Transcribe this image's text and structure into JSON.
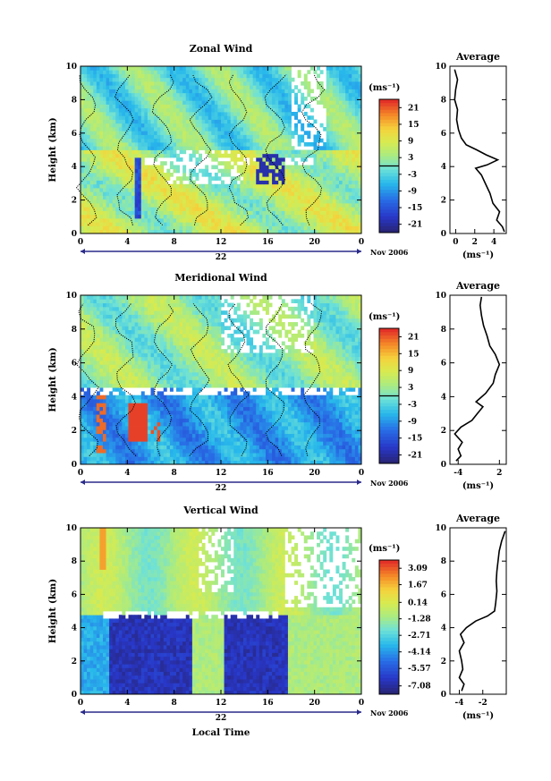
{
  "date_label": "Nov 2006",
  "unit_label": "(ms⁻¹)",
  "day_label": "22",
  "xlabel_bottom": "Local Time",
  "chart_data": [
    {
      "type": "heatmap",
      "name": "zonal",
      "title": "Zonal Wind",
      "xlabel": "",
      "ylabel": "Height (km)",
      "x_ticks": [
        "0",
        "4",
        "8",
        "12",
        "16",
        "20",
        "0"
      ],
      "x_range": [
        0,
        24
      ],
      "y_ticks": [
        "0",
        "2",
        "4",
        "6",
        "8",
        "10"
      ],
      "ylim": [
        0,
        10
      ],
      "colorbar": {
        "ticks": [
          "21",
          "15",
          "9",
          "3",
          "-3",
          "-9",
          "-15",
          "-21"
        ],
        "range": [
          -24,
          24
        ],
        "zero_line": true
      },
      "grid": false
    },
    {
      "type": "line",
      "name": "zonal-average",
      "title": "Average",
      "xlabel": "(ms⁻¹)",
      "x_ticks": [
        "0",
        "2",
        "4"
      ],
      "xlim": [
        -0.6,
        5.3
      ],
      "y_ticks": [
        "0",
        "2",
        "4",
        "6",
        "8",
        "10"
      ],
      "ylim": [
        0,
        10
      ],
      "points": [
        [
          5.1,
          0.1
        ],
        [
          4.9,
          0.4
        ],
        [
          4.3,
          0.8
        ],
        [
          4.6,
          1.3
        ],
        [
          3.9,
          1.8
        ],
        [
          3.6,
          2.4
        ],
        [
          3.1,
          3.0
        ],
        [
          2.7,
          3.5
        ],
        [
          2.1,
          3.9
        ],
        [
          3.3,
          4.1
        ],
        [
          4.4,
          4.4
        ],
        [
          3.2,
          4.7
        ],
        [
          2.2,
          5.0
        ],
        [
          1.1,
          5.3
        ],
        [
          0.6,
          5.7
        ],
        [
          0.3,
          6.2
        ],
        [
          0.1,
          6.8
        ],
        [
          0.2,
          7.4
        ],
        [
          -0.1,
          8.0
        ],
        [
          0.0,
          8.6
        ],
        [
          0.2,
          9.2
        ],
        [
          -0.1,
          9.8
        ]
      ]
    },
    {
      "type": "heatmap",
      "name": "meridional",
      "title": "Meridional Wind",
      "xlabel": "",
      "ylabel": "Height (km)",
      "x_ticks": [
        "0",
        "4",
        "8",
        "12",
        "16",
        "20",
        "0"
      ],
      "x_range": [
        0,
        24
      ],
      "y_ticks": [
        "0",
        "2",
        "4",
        "6",
        "8",
        "10"
      ],
      "ylim": [
        0,
        10
      ],
      "colorbar": {
        "ticks": [
          "21",
          "15",
          "9",
          "3",
          "-3",
          "-9",
          "-15",
          "-21"
        ],
        "range": [
          -24,
          24
        ],
        "zero_line": true
      },
      "grid": false
    },
    {
      "type": "line",
      "name": "meridional-average",
      "title": "Average",
      "xlabel": "(ms⁻¹)",
      "x_ticks": [
        "-4",
        "2"
      ],
      "xlim": [
        -5.2,
        3.0
      ],
      "y_ticks": [
        "0",
        "2",
        "4",
        "6",
        "8",
        "10"
      ],
      "ylim": [
        0,
        10
      ],
      "points": [
        [
          -4.3,
          0.2
        ],
        [
          -3.6,
          0.5
        ],
        [
          -4.0,
          0.9
        ],
        [
          -3.4,
          1.3
        ],
        [
          -4.5,
          1.8
        ],
        [
          -3.6,
          2.2
        ],
        [
          -2.0,
          2.6
        ],
        [
          -1.2,
          3.0
        ],
        [
          -0.4,
          3.4
        ],
        [
          -1.4,
          3.7
        ],
        [
          0.0,
          4.2
        ],
        [
          1.1,
          4.8
        ],
        [
          1.4,
          5.3
        ],
        [
          2.0,
          5.9
        ],
        [
          1.4,
          6.5
        ],
        [
          0.6,
          7.0
        ],
        [
          0.2,
          7.6
        ],
        [
          -0.3,
          8.2
        ],
        [
          -0.6,
          8.8
        ],
        [
          -0.8,
          9.4
        ],
        [
          -0.6,
          9.9
        ]
      ]
    },
    {
      "type": "heatmap",
      "name": "vertical",
      "title": "Vertical Wind",
      "xlabel": "Local Time",
      "ylabel": "Height (km)",
      "x_ticks": [
        "0",
        "4",
        "8",
        "12",
        "16",
        "20",
        "0"
      ],
      "x_range": [
        0,
        24
      ],
      "y_ticks": [
        "0",
        "2",
        "4",
        "6",
        "8",
        "10"
      ],
      "ylim": [
        0,
        10
      ],
      "colorbar": {
        "ticks": [
          "3.09",
          "1.67",
          "0.14",
          "-1.28",
          "-2.71",
          "-4.14",
          "-5.57",
          "-7.08"
        ],
        "range": [
          -7.8,
          3.8
        ],
        "zero_line": false
      },
      "grid": false
    },
    {
      "type": "line",
      "name": "vertical-average",
      "title": "Average",
      "xlabel": "(ms⁻¹)",
      "x_ticks": [
        "-4",
        "-2"
      ],
      "xlim": [
        -4.8,
        0.0
      ],
      "y_ticks": [
        "0",
        "2",
        "4",
        "6",
        "8",
        "10"
      ],
      "ylim": [
        0,
        10
      ],
      "points": [
        [
          -3.8,
          0.2
        ],
        [
          -3.6,
          0.6
        ],
        [
          -4.0,
          1.0
        ],
        [
          -3.7,
          1.5
        ],
        [
          -3.8,
          2.0
        ],
        [
          -4.0,
          2.6
        ],
        [
          -3.6,
          3.1
        ],
        [
          -3.9,
          3.6
        ],
        [
          -3.4,
          4.0
        ],
        [
          -2.6,
          4.4
        ],
        [
          -1.6,
          4.7
        ],
        [
          -1.0,
          5.0
        ],
        [
          -0.9,
          5.5
        ],
        [
          -0.8,
          6.2
        ],
        [
          -0.85,
          6.8
        ],
        [
          -0.8,
          7.4
        ],
        [
          -0.7,
          8.0
        ],
        [
          -0.6,
          8.6
        ],
        [
          -0.4,
          9.2
        ],
        [
          -0.1,
          9.8
        ]
      ]
    }
  ]
}
